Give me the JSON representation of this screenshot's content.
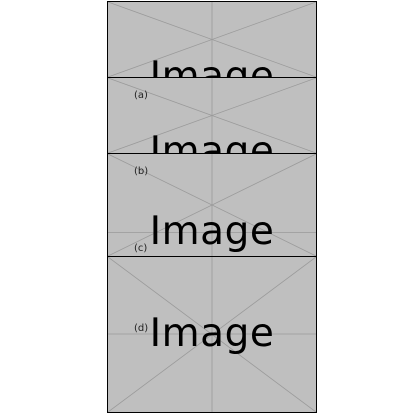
{
  "placeholder_text": "Image",
  "colors": {
    "panel_fill": "#bfbfbf",
    "cross_lines": "#9a9a9a",
    "border": "#000000"
  },
  "subfigures": [
    {
      "caption": ""
    },
    {
      "caption": "(a)"
    },
    {
      "caption": "(b)"
    },
    {
      "caption": "(c)"
    },
    {
      "caption": "(d)"
    }
  ]
}
